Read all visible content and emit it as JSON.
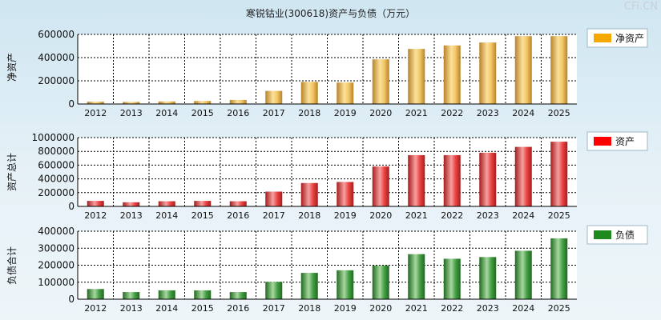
{
  "title": "寒锐钴业(300618)资产与负债（万元）",
  "brand": "CFi.CN",
  "colors": {
    "net_assets": [
      "#b7832a",
      "#f3c766",
      "#fbe09c"
    ],
    "total_assets": [
      "#a51d1d",
      "#ee4444",
      "#f6a0a0"
    ],
    "liabilities": [
      "#1f6a1f",
      "#47a047",
      "#a8d8a0"
    ],
    "legend_net": "#f5a800",
    "legend_assets": "#ff0000",
    "legend_liab": "#1e8a1e"
  },
  "chart_data": [
    {
      "type": "bar",
      "ylabel": "净资产",
      "legend": "净资产",
      "categories": [
        "2012",
        "2013",
        "2014",
        "2015",
        "2016",
        "2017",
        "2018",
        "2019",
        "2020",
        "2021",
        "2022",
        "2023",
        "2024",
        "2025"
      ],
      "values": [
        20000,
        18000,
        22000,
        26000,
        35000,
        113000,
        190000,
        185000,
        385000,
        475000,
        505000,
        530000,
        585000,
        585000
      ],
      "ylim": [
        0,
        600000
      ],
      "yticks": [
        "600000",
        "400000",
        "200000",
        "0"
      ],
      "grid": true
    },
    {
      "type": "bar",
      "ylabel": "资产总计",
      "legend": "资产",
      "categories": [
        "2012",
        "2013",
        "2014",
        "2015",
        "2016",
        "2017",
        "2018",
        "2019",
        "2020",
        "2021",
        "2022",
        "2023",
        "2024",
        "2025"
      ],
      "values": [
        80000,
        60000,
        75000,
        80000,
        75000,
        215000,
        340000,
        355000,
        580000,
        745000,
        745000,
        780000,
        865000,
        940000
      ],
      "ylim": [
        0,
        1000000
      ],
      "yticks": [
        "1000000",
        "800000",
        "600000",
        "400000",
        "200000",
        "0"
      ],
      "grid": true
    },
    {
      "type": "bar",
      "ylabel": "负债合计",
      "legend": "负债",
      "categories": [
        "2012",
        "2013",
        "2014",
        "2015",
        "2016",
        "2017",
        "2018",
        "2019",
        "2020",
        "2021",
        "2022",
        "2023",
        "2024",
        "2025"
      ],
      "values": [
        60000,
        42000,
        52000,
        52000,
        42000,
        102000,
        155000,
        170000,
        198000,
        265000,
        238000,
        248000,
        285000,
        358000
      ],
      "ylim": [
        0,
        400000
      ],
      "yticks": [
        "400000",
        "300000",
        "200000",
        "100000",
        "0"
      ],
      "grid": true
    }
  ]
}
